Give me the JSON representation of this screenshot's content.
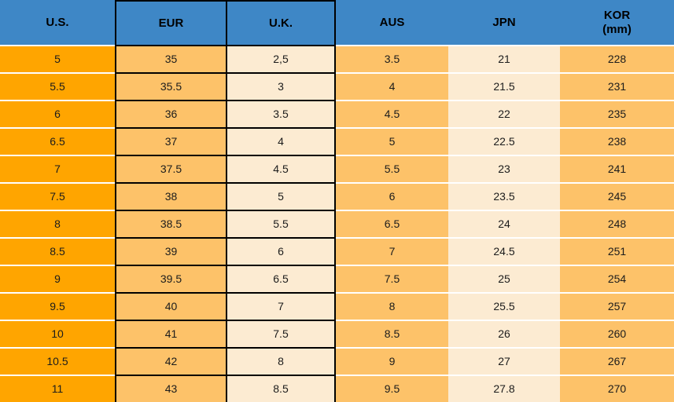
{
  "chart_data": {
    "type": "table",
    "columns": [
      {
        "key": "us",
        "label": "U.S.",
        "sub": ""
      },
      {
        "key": "eur",
        "label": "EUR",
        "sub": ""
      },
      {
        "key": "uk",
        "label": "U.K.",
        "sub": ""
      },
      {
        "key": "aus",
        "label": "AUS",
        "sub": ""
      },
      {
        "key": "jpn",
        "label": "JPN",
        "sub": ""
      },
      {
        "key": "kor",
        "label": "KOR",
        "sub": "(mm)"
      }
    ],
    "rows": [
      [
        "5",
        "35",
        "2,5",
        "3.5",
        "21",
        "228"
      ],
      [
        "5.5",
        "35.5",
        "3",
        "4",
        "21.5",
        "231"
      ],
      [
        "6",
        "36",
        "3.5",
        "4.5",
        "22",
        "235"
      ],
      [
        "6.5",
        "37",
        "4",
        "5",
        "22.5",
        "238"
      ],
      [
        "7",
        "37.5",
        "4.5",
        "5.5",
        "23",
        "241"
      ],
      [
        "7.5",
        "38",
        "5",
        "6",
        "23.5",
        "245"
      ],
      [
        "8",
        "38.5",
        "5.5",
        "6.5",
        "24",
        "248"
      ],
      [
        "8.5",
        "39",
        "6",
        "7",
        "24.5",
        "251"
      ],
      [
        "9",
        "39.5",
        "6.5",
        "7.5",
        "25",
        "254"
      ],
      [
        "9.5",
        "40",
        "7",
        "8",
        "25.5",
        "257"
      ],
      [
        "10",
        "41",
        "7.5",
        "8.5",
        "26",
        "260"
      ],
      [
        "10.5",
        "42",
        "8",
        "9",
        "27",
        "267"
      ],
      [
        "11",
        "43",
        "8.5",
        "9.5",
        "27.8",
        "270"
      ]
    ]
  },
  "colors": {
    "header_blue": "#3E87C6",
    "orange": "#FFA500",
    "tan": "#FDC269",
    "cream": "#FCEBD2",
    "border_black": "#000000",
    "separator_white": "#FFFFFF",
    "text": "#1C1C1C"
  }
}
